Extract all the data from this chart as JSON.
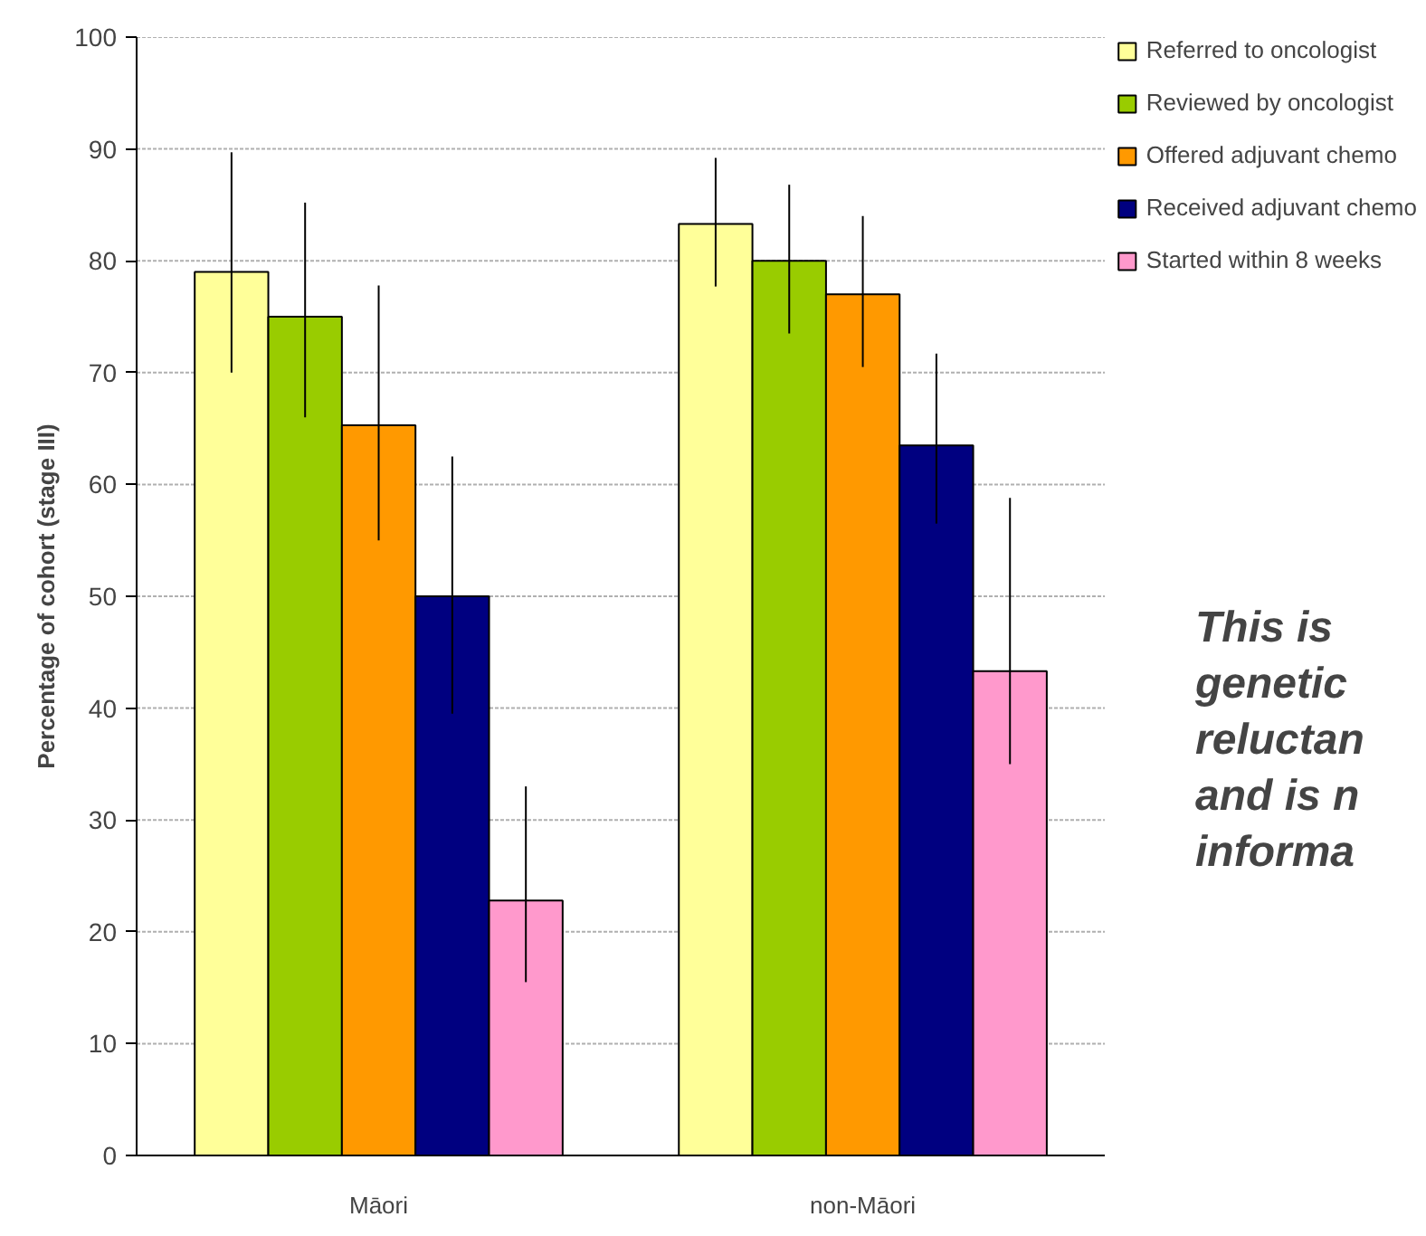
{
  "chart_data": {
    "type": "bar",
    "ylabel": "Percentage of cohort (stage III)",
    "categories": [
      "Māori",
      "non-Māori"
    ],
    "series": [
      {
        "name": "Referred to oncologist",
        "color": "#ffff99",
        "values": [
          79,
          83.3
        ],
        "errors": [
          [
            70,
            89.7
          ],
          [
            77.7,
            89.2
          ]
        ]
      },
      {
        "name": "Reviewed by oncologist",
        "color": "#99cc00",
        "values": [
          75,
          80
        ],
        "errors": [
          [
            66,
            85.2
          ],
          [
            73.5,
            86.8
          ]
        ]
      },
      {
        "name": "Offered adjuvant chemo",
        "color": "#ff9900",
        "values": [
          65.3,
          77
        ],
        "errors": [
          [
            55,
            77.8
          ],
          [
            70.5,
            84
          ]
        ]
      },
      {
        "name": "Received adjuvant chemo",
        "color": "#000080",
        "values": [
          50,
          63.5
        ],
        "errors": [
          [
            39.5,
            62.5
          ],
          [
            56.5,
            71.7
          ]
        ]
      },
      {
        "name": "Started within 8 weeks",
        "color": "#ff99cc",
        "values": [
          22.8,
          43.3
        ],
        "errors": [
          [
            15.5,
            33
          ],
          [
            35,
            58.8
          ]
        ]
      }
    ],
    "ylim": [
      0,
      100
    ],
    "yticks": [
      0,
      10,
      20,
      30,
      40,
      50,
      60,
      70,
      80,
      90,
      100
    ],
    "grid": "y",
    "legend": "top right",
    "annotations": [
      "This is\ngenetic\nreluctan\nand is n\ninforma"
    ]
  }
}
